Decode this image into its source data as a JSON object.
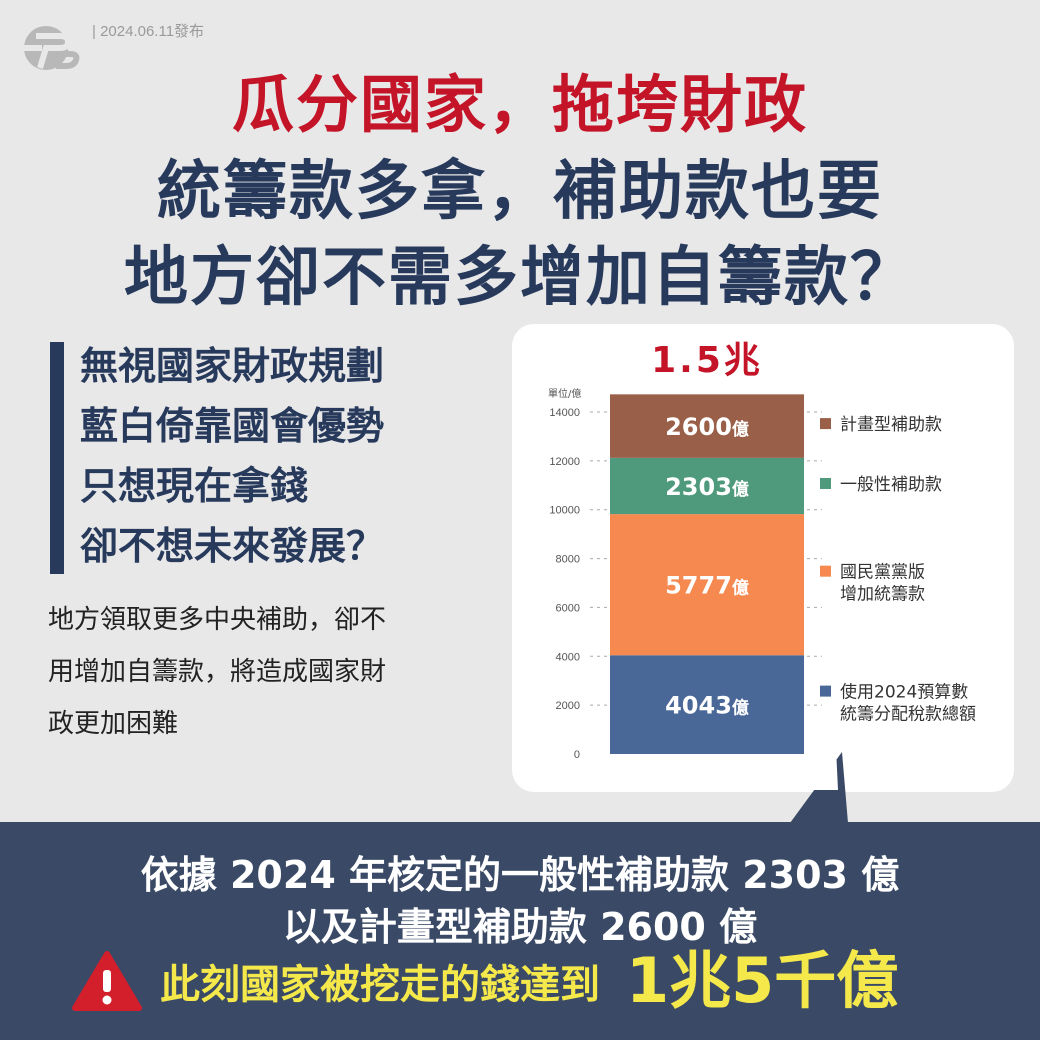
{
  "header": {
    "date": "2024.06.11發布"
  },
  "headline": {
    "line1": "瓜分國家，拖垮財政",
    "line2": "統籌款多拿，補助款也要",
    "line3": "地方卻不需多增加自籌款？"
  },
  "quote": {
    "lines": [
      "無視國家財政規劃",
      "藍白倚靠國會優勢",
      "只想現在拿錢",
      "卻不想未來發展？"
    ]
  },
  "description": {
    "lines": [
      "地方領取更多中央補助，卻不",
      "用增加自籌款，將造成國家財",
      "政更加困難"
    ]
  },
  "chart_data": {
    "type": "bar",
    "stacked": true,
    "total_label": "1.5兆",
    "unit_label": "單位/億",
    "ylim": [
      0,
      14000
    ],
    "yticks": [
      0,
      2000,
      4000,
      6000,
      8000,
      10000,
      12000,
      14000
    ],
    "grid": "dashed",
    "legend_placement": "right",
    "series": [
      {
        "name": "使用2024預算數統籌分配稅款總額",
        "legend": [
          "使用2024預算數",
          "統籌分配稅款總額"
        ],
        "value": 4043,
        "label": "4043億",
        "color": "#4a6897"
      },
      {
        "name": "國民黨黨版增加統籌款",
        "legend": [
          "國民黨黨版",
          "增加統籌款"
        ],
        "value": 5777,
        "label": "5777億",
        "color": "#f5894f"
      },
      {
        "name": "一般性補助款",
        "legend": [
          "一般性補助款"
        ],
        "value": 2303,
        "label": "2303億",
        "color": "#4f9a7c"
      },
      {
        "name": "計畫型補助款",
        "legend": [
          "計畫型補助款"
        ],
        "value": 2600,
        "label": "2600億",
        "color": "#9a5f48"
      }
    ]
  },
  "bottom": {
    "line1": "依據 2024 年核定的一般性補助款 2303 億",
    "line2": "以及計畫型補助款 2600 億",
    "line3": "此刻國家被挖走的錢達到",
    "highlight": "1兆5千億"
  },
  "colors": {
    "navy": "#283a5c",
    "red": "#c41428",
    "panel": "#3a4a66",
    "yellow": "#f4e84a"
  }
}
